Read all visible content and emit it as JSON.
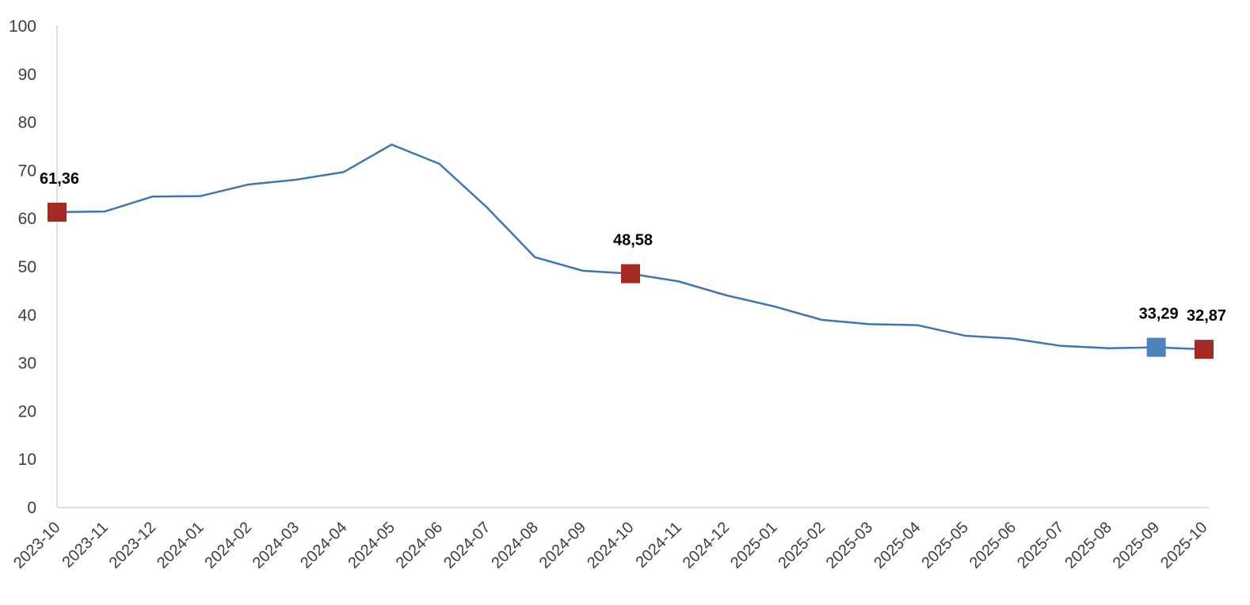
{
  "chart_data": {
    "type": "line",
    "title": "",
    "xlabel": "",
    "ylabel": "",
    "categories": [
      "2023-10",
      "2023-11",
      "2023-12",
      "2024-01",
      "2024-02",
      "2024-03",
      "2024-04",
      "2024-05",
      "2024-06",
      "2024-07",
      "2024-08",
      "2024-09",
      "2024-10",
      "2024-11",
      "2024-12",
      "2025-01",
      "2025-02",
      "2025-03",
      "2025-04",
      "2025-05",
      "2025-06",
      "2025-07",
      "2025-08",
      "2025-09",
      "2025-10"
    ],
    "series": [
      {
        "name": "monthly-values",
        "values": [
          61.36,
          61.5,
          64.6,
          64.7,
          67.1,
          68.1,
          69.7,
          75.4,
          71.4,
          62.3,
          52.0,
          49.2,
          48.58,
          47.0,
          44.1,
          41.8,
          39.0,
          38.1,
          37.9,
          35.7,
          35.1,
          33.6,
          33.1,
          33.29,
          32.87
        ]
      }
    ],
    "ylim": [
      0,
      100
    ],
    "yticks": [
      0,
      10,
      20,
      30,
      40,
      50,
      60,
      70,
      80,
      90,
      100
    ],
    "grid": false,
    "legend": "none",
    "x_tick_rotation": 45,
    "annotations": [
      {
        "category": "2023-10",
        "value": 61.36,
        "label": "61,36",
        "marker_color": "#a32b24"
      },
      {
        "category": "2024-10",
        "value": 48.58,
        "label": "48,58",
        "marker_color": "#a32b24"
      },
      {
        "category": "2025-09",
        "value": 33.29,
        "label": "33,29",
        "marker_color": "#4f81bd"
      },
      {
        "category": "2025-10",
        "value": 32.87,
        "label": "32,87",
        "marker_color": "#a32b24"
      }
    ],
    "colors": {
      "line": "#3e74ba",
      "axis": "#e0e0e0",
      "tick_text": "#3d3d3d",
      "label_text": "#000000",
      "red_marker": "#a32b24",
      "blue_marker": "#4f81bd"
    }
  }
}
